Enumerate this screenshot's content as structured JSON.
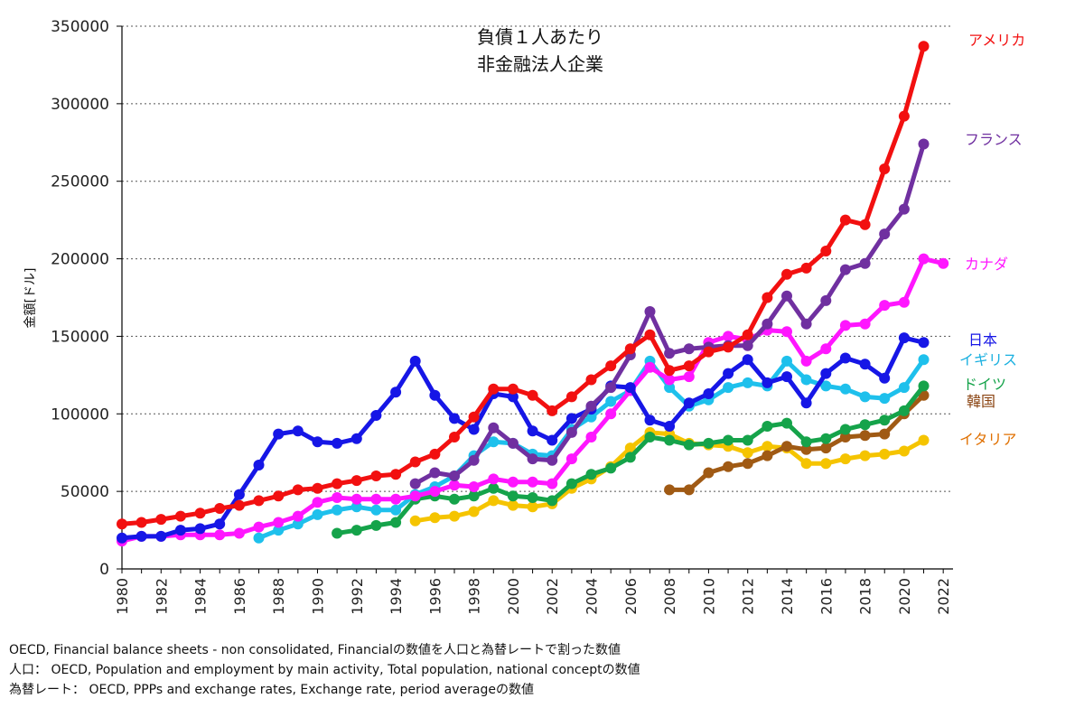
{
  "chart_data": {
    "type": "line",
    "title": "負債１人あたり",
    "subtitle": "非金融法人企業",
    "ylabel": "金額[ドル]",
    "xlabel": "",
    "xlim": [
      1980,
      2022
    ],
    "ylim": [
      0,
      350000
    ],
    "y_ticks": [
      "0",
      "50000",
      "100000",
      "150000",
      "200000",
      "250000",
      "300000",
      "350000"
    ],
    "x_ticks": [
      "1980",
      "1982",
      "1984",
      "1986",
      "1988",
      "1990",
      "1992",
      "1994",
      "1996",
      "1998",
      "2000",
      "2002",
      "2004",
      "2006",
      "2008",
      "2010",
      "2012",
      "2014",
      "2016",
      "2018",
      "2020",
      "2022"
    ],
    "grid": "horizontal dotted",
    "legend": "right end of lines",
    "series": [
      {
        "name": "イタリア",
        "color": "#f5c400",
        "label_color": "#e07000",
        "x": [
          1995,
          1996,
          1997,
          1998,
          1999,
          2000,
          2001,
          2002,
          2003,
          2004,
          2005,
          2006,
          2007,
          2008,
          2009,
          2010,
          2011,
          2012,
          2013,
          2014,
          2015,
          2016,
          2017,
          2018,
          2019,
          2020,
          2021
        ],
        "y": [
          31000,
          33000,
          34000,
          37000,
          44000,
          41000,
          40000,
          42000,
          52000,
          58000,
          66000,
          78000,
          88000,
          87000,
          81000,
          80000,
          79000,
          75000,
          79000,
          78000,
          68000,
          68000,
          71000,
          73000,
          74000,
          76000,
          83000
        ]
      },
      {
        "name": "韓国",
        "color": "#a05a14",
        "label_color": "#8b4513",
        "x": [
          2008,
          2009,
          2010,
          2011,
          2012,
          2013,
          2014,
          2015,
          2016,
          2017,
          2018,
          2019,
          2020,
          2021
        ],
        "y": [
          51000,
          51000,
          62000,
          66000,
          68000,
          73000,
          79000,
          77000,
          78000,
          85000,
          86000,
          87000,
          100000,
          112000
        ]
      },
      {
        "name": "ドイツ",
        "color": "#15a34a",
        "label_color": "#15a34a",
        "x": [
          1991,
          1992,
          1993,
          1994,
          1995,
          1996,
          1997,
          1998,
          1999,
          2000,
          2001,
          2002,
          2003,
          2004,
          2005,
          2006,
          2007,
          2008,
          2009,
          2010,
          2011,
          2012,
          2013,
          2014,
          2015,
          2016,
          2017,
          2018,
          2019,
          2020,
          2021
        ],
        "y": [
          23000,
          25000,
          28000,
          30000,
          45000,
          47000,
          45000,
          47000,
          52000,
          47000,
          46000,
          44000,
          55000,
          61000,
          65000,
          72000,
          85000,
          83000,
          80000,
          81000,
          83000,
          83000,
          92000,
          94000,
          82000,
          84000,
          90000,
          93000,
          96000,
          102000,
          118000
        ]
      },
      {
        "name": "イギリス",
        "color": "#1ec0ec",
        "label_color": "#1ab0e0",
        "x": [
          1987,
          1988,
          1989,
          1990,
          1991,
          1992,
          1993,
          1994,
          1995,
          1996,
          1997,
          1998,
          1999,
          2000,
          2001,
          2002,
          2003,
          2004,
          2005,
          2006,
          2007,
          2008,
          2009,
          2010,
          2011,
          2012,
          2013,
          2014,
          2015,
          2016,
          2017,
          2018,
          2019,
          2020,
          2021
        ],
        "y": [
          20000,
          25000,
          29000,
          35000,
          38000,
          40000,
          38000,
          38000,
          48000,
          53000,
          60000,
          73000,
          82000,
          81000,
          74000,
          73000,
          90000,
          98000,
          108000,
          115000,
          134000,
          117000,
          105000,
          109000,
          117000,
          120000,
          118000,
          134000,
          122000,
          118000,
          116000,
          111000,
          110000,
          117000,
          135000
        ]
      },
      {
        "name": "カナダ",
        "color": "#ff16ff",
        "label_color": "#ff16ff",
        "x": [
          1980,
          1981,
          1982,
          1983,
          1984,
          1985,
          1986,
          1987,
          1988,
          1989,
          1990,
          1991,
          1992,
          1993,
          1994,
          1995,
          1996,
          1997,
          1998,
          1999,
          2000,
          2001,
          2002,
          2003,
          2004,
          2005,
          2006,
          2007,
          2008,
          2009,
          2010,
          2011,
          2012,
          2013,
          2014,
          2015,
          2016,
          2017,
          2018,
          2019,
          2020,
          2021,
          2022
        ],
        "y": [
          18000,
          21000,
          21000,
          22000,
          22000,
          22000,
          23000,
          27000,
          30000,
          34000,
          43000,
          46000,
          45000,
          45000,
          45000,
          47000,
          50000,
          54000,
          53000,
          58000,
          56000,
          56000,
          55000,
          71000,
          85000,
          100000,
          115000,
          130000,
          122000,
          124000,
          146000,
          150000,
          148000,
          154000,
          153000,
          134000,
          142000,
          157000,
          158000,
          170000,
          172000,
          200000,
          197000
        ]
      },
      {
        "name": "日本",
        "color": "#1616e6",
        "label_color": "#1616e6",
        "x": [
          1980,
          1981,
          1982,
          1983,
          1984,
          1985,
          1986,
          1987,
          1988,
          1989,
          1990,
          1991,
          1992,
          1993,
          1994,
          1995,
          1996,
          1997,
          1998,
          1999,
          2000,
          2001,
          2002,
          2003,
          2004,
          2005,
          2006,
          2007,
          2008,
          2009,
          2010,
          2011,
          2012,
          2013,
          2014,
          2015,
          2016,
          2017,
          2018,
          2019,
          2020,
          2021
        ],
        "y": [
          20000,
          21000,
          21000,
          25000,
          26000,
          29000,
          48000,
          67000,
          87000,
          89000,
          82000,
          81000,
          84000,
          99000,
          114000,
          134000,
          112000,
          97000,
          90000,
          113000,
          111000,
          89000,
          83000,
          97000,
          103000,
          118000,
          117000,
          96000,
          92000,
          107000,
          113000,
          126000,
          135000,
          120000,
          124000,
          107000,
          126000,
          136000,
          132000,
          123000,
          149000,
          146000
        ]
      },
      {
        "name": "フランス",
        "color": "#7030a0",
        "label_color": "#7030a0",
        "x": [
          1995,
          1996,
          1997,
          1998,
          1999,
          2000,
          2001,
          2002,
          2003,
          2004,
          2005,
          2006,
          2007,
          2008,
          2009,
          2010,
          2011,
          2012,
          2013,
          2014,
          2015,
          2016,
          2017,
          2018,
          2019,
          2020,
          2021
        ],
        "y": [
          55000,
          62000,
          60000,
          70000,
          91000,
          81000,
          71000,
          70000,
          88000,
          105000,
          117000,
          138000,
          166000,
          139000,
          142000,
          143000,
          144000,
          144000,
          158000,
          176000,
          158000,
          173000,
          193000,
          197000,
          216000,
          232000,
          274000
        ]
      },
      {
        "name": "アメリカ",
        "color": "#f21010",
        "label_color": "#f21010",
        "x": [
          1980,
          1981,
          1982,
          1983,
          1984,
          1985,
          1986,
          1987,
          1988,
          1989,
          1990,
          1991,
          1992,
          1993,
          1994,
          1995,
          1996,
          1997,
          1998,
          1999,
          2000,
          2001,
          2002,
          2003,
          2004,
          2005,
          2006,
          2007,
          2008,
          2009,
          2010,
          2011,
          2012,
          2013,
          2014,
          2015,
          2016,
          2017,
          2018,
          2019,
          2020,
          2021
        ],
        "y": [
          29000,
          30000,
          32000,
          34000,
          36000,
          39000,
          41000,
          44000,
          47000,
          51000,
          52000,
          55000,
          57000,
          60000,
          61000,
          69000,
          74000,
          85000,
          98000,
          116000,
          116000,
          112000,
          102000,
          111000,
          122000,
          131000,
          142000,
          151000,
          128000,
          131000,
          140000,
          143000,
          151000,
          175000,
          190000,
          194000,
          205000,
          225000,
          222000,
          258000,
          292000,
          337000
        ]
      }
    ]
  },
  "footnote": {
    "line1": "OECD, Financial balance sheets - non consolidated, Financialの数値を人口と為替レートで割った数値",
    "line2": "人口： OECD, Population and employment by main activity, Total population, national conceptの数値",
    "line3": "為替レート： OECD, PPPs and exchange rates, Exchange rate, period averageの数値"
  }
}
